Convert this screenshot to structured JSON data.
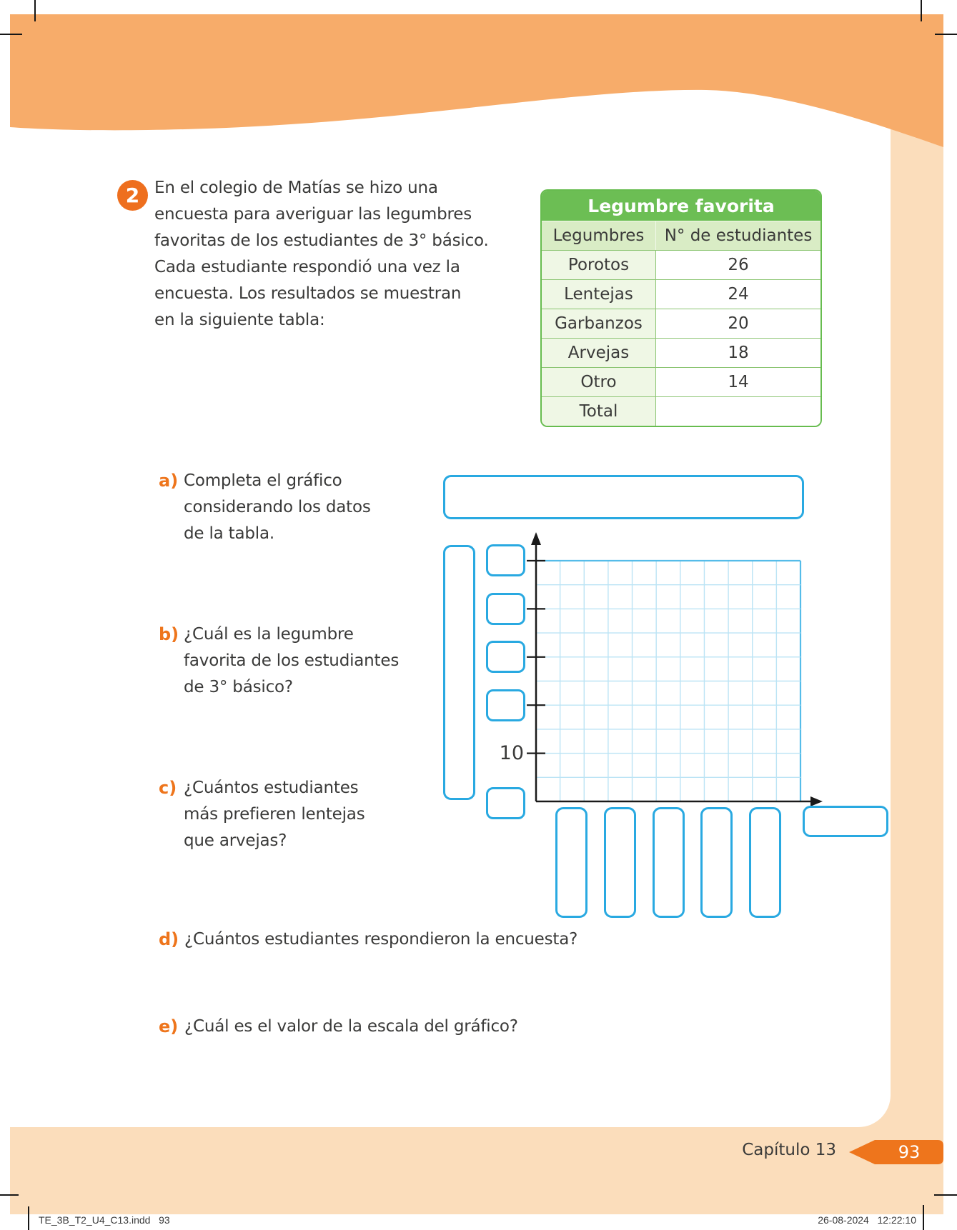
{
  "exercise": {
    "number": "2",
    "intro_lines": [
      "En el colegio de Matías se hizo una",
      "encuesta para averiguar las legumbres",
      "favoritas de los estudiantes de 3° básico.",
      "Cada estudiante respondió una vez la",
      "encuesta. Los resultados se muestran",
      "en la siguiente tabla:"
    ]
  },
  "table": {
    "title": "Legumbre favorita",
    "columns": [
      "Legumbres",
      "N° de estudiantes"
    ],
    "rows": [
      {
        "name": "Porotos",
        "value": "26"
      },
      {
        "name": "Lentejas",
        "value": "24"
      },
      {
        "name": "Garbanzos",
        "value": "20"
      },
      {
        "name": "Arvejas",
        "value": "18"
      },
      {
        "name": "Otro",
        "value": "14"
      },
      {
        "name": "Total",
        "value": ""
      }
    ]
  },
  "questions": {
    "a": {
      "label": "a)",
      "lines": [
        "Completa el gráfico",
        "considerando los datos",
        "de la tabla."
      ]
    },
    "b": {
      "label": "b)",
      "lines": [
        "¿Cuál es la legumbre",
        "favorita de los estudiantes",
        "de 3° básico?"
      ]
    },
    "c": {
      "label": "c)",
      "lines": [
        "¿Cuántos estudiantes",
        "más prefieren lentejas",
        "que arvejas?"
      ]
    },
    "d": {
      "label": "d)",
      "lines": [
        "¿Cuántos estudiantes respondieron la encuesta?"
      ]
    },
    "e": {
      "label": "e)",
      "lines": [
        "¿Cuál es el valor de la escala del gráfico?"
      ]
    }
  },
  "chart": {
    "y_axis_tick_label": "10"
  },
  "footer": {
    "chapter_label": "Capítulo 13",
    "page_number": "93"
  },
  "print_info": {
    "left": "TE_3B_T2_U4_C13.indd   93",
    "right": "26-08-2024   12:22:10"
  },
  "colors": {
    "accent_orange": "#EE751C",
    "header_band_orange": "#F7AC6A",
    "page_band_peach": "#FBDDBB",
    "table_green": "#6CBE54",
    "answer_box_blue": "#29A9E1",
    "grid_blue": "#BCE4F5",
    "text": "#3A3A39"
  }
}
